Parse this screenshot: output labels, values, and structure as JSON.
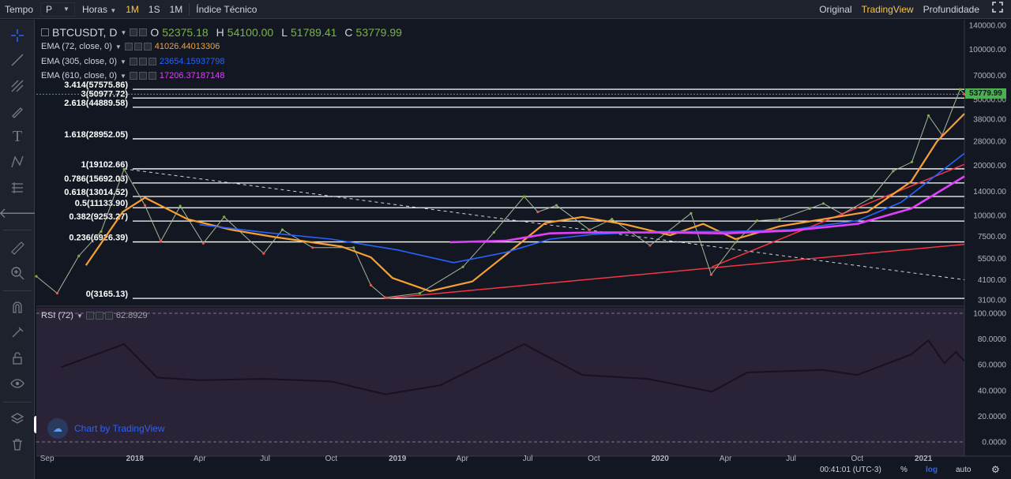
{
  "toolbar": {
    "tempo_label": "Tempo",
    "interval_value": "P",
    "horas_label": "Horas",
    "btn_1m_active": "1M",
    "btn_1s": "1S",
    "btn_1m": "1M",
    "indicators": "Índice Técnico",
    "original": "Original",
    "tradingview": "TradingView",
    "profundidade": "Profundidade",
    "fullscreen_icon": "fullscreen-icon"
  },
  "symbol": {
    "name": "BTCUSDT, D",
    "open_label": "O",
    "open": "52375.18",
    "high_label": "H",
    "high": "54100.00",
    "low_label": "L",
    "low": "51789.41",
    "close_label": "C",
    "close": "53779.99"
  },
  "ema": [
    {
      "label": "EMA (72, close, 0)",
      "value": "41026.44013306",
      "color": "#f7a035"
    },
    {
      "label": "EMA (305, close, 0)",
      "value": "23654.15937798",
      "color": "#2962ff"
    },
    {
      "label": "EMA (610, close, 0)",
      "value": "17206.37187148",
      "color": "#e040fb"
    }
  ],
  "fib_levels": [
    {
      "label": "3.414(57575.86)",
      "price": 57575.86
    },
    {
      "label": "3(50977.72)",
      "price": 50977.72
    },
    {
      "label": "2.618(44889.58)",
      "price": 44889.58
    },
    {
      "label": "1.618(28952.05)",
      "price": 28952.05
    },
    {
      "label": "1(19102.66)",
      "price": 19102.66
    },
    {
      "label": "0.786(15692.03)",
      "price": 15692.03
    },
    {
      "label": "0.618(13014.52)",
      "price": 13014.52
    },
    {
      "label": "0.5(11133.90)",
      "price": 11133.9
    },
    {
      "label": "0.382(9253.27)",
      "price": 9253.27
    },
    {
      "label": "0.236(6926.39)",
      "price": 6926.39
    },
    {
      "label": "0(3165.13)",
      "price": 3165.13
    }
  ],
  "price_axis": [
    "140000.00",
    "100000.00",
    "70000.00",
    "50000.00",
    "38000.00",
    "28000.00",
    "20000.00",
    "14000.00",
    "10000.00",
    "7500.00",
    "5500.00",
    "4100.00",
    "3100.00"
  ],
  "price_axis_values": [
    140000,
    100000,
    70000,
    50000,
    38000,
    28000,
    20000,
    14000,
    10000,
    7500,
    5500,
    4100,
    3100
  ],
  "current_price_tag": "53779.99",
  "rsi": {
    "label": "RSI (72)",
    "value": "62.8929",
    "axis": [
      "100.0000",
      "80.0000",
      "60.0000",
      "40.0000",
      "20.0000",
      "0.0000"
    ],
    "axis_values": [
      100,
      80,
      60,
      40,
      20,
      0
    ]
  },
  "time_axis": [
    "Sep",
    "2018",
    "Apr",
    "Jul",
    "Oct",
    "2019",
    "Apr",
    "Jul",
    "Oct",
    "2020",
    "Apr",
    "Jul",
    "Oct",
    "2021"
  ],
  "watermark": "Chart by TradingView",
  "status": {
    "clock": "00:41:01 (UTC-3)",
    "percent": "%",
    "log": "log",
    "auto": "auto"
  },
  "colors": {
    "background": "#131722",
    "rsi_background": "#2a2236",
    "fib_line": "#ffffff",
    "ema72": "#f7a035",
    "ema305": "#2962ff",
    "ema610": "#e040fb",
    "trendline": "#f23645",
    "candle_up": "#7cb342",
    "candle_down": "#ef5350",
    "accent": "#f7c744"
  },
  "chart_data": {
    "type": "line",
    "title": "BTCUSDT, D",
    "y_scale": "log",
    "x_start": "2017-08-17",
    "x_end": "2021-02-27",
    "ylim": [
      2900,
      160000
    ],
    "series": [
      {
        "name": "BTCUSDT",
        "x": [
          "2017-08-17",
          "2017-09-15",
          "2017-10-15",
          "2017-11-15",
          "2017-12-17",
          "2018-01-15",
          "2018-02-06",
          "2018-03-05",
          "2018-04-06",
          "2018-05-05",
          "2018-06-29",
          "2018-07-25",
          "2018-09-05",
          "2018-11-01",
          "2018-11-25",
          "2018-12-15",
          "2019-02-01",
          "2019-04-02",
          "2019-05-15",
          "2019-06-26",
          "2019-07-15",
          "2019-08-10",
          "2019-09-25",
          "2019-10-26",
          "2019-12-18",
          "2020-02-13",
          "2020-03-12",
          "2020-04-15",
          "2020-05-15",
          "2020-06-15",
          "2020-07-27",
          "2020-08-15",
          "2020-09-10",
          "2020-10-21",
          "2020-11-20",
          "2020-12-16",
          "2021-01-08",
          "2021-01-27",
          "2021-02-21",
          "2021-02-27"
        ],
        "values": [
          4300,
          3400,
          5700,
          8000,
          19000,
          11500,
          7000,
          11400,
          6800,
          9800,
          5900,
          8200,
          6400,
          6400,
          3800,
          3200,
          3400,
          4900,
          7900,
          13000,
          10500,
          11500,
          8200,
          9500,
          6600,
          10300,
          4400,
          6900,
          9300,
          9500,
          11000,
          11800,
          10200,
          12800,
          18500,
          21000,
          40000,
          30500,
          57500,
          53779.99
        ]
      },
      {
        "name": "EMA (72, close, 0)",
        "x": [
          "2017-10-25",
          "2017-12-15",
          "2018-01-15",
          "2018-03-15",
          "2018-05-15",
          "2018-07-15",
          "2018-10-15",
          "2018-11-25",
          "2018-12-25",
          "2019-02-15",
          "2019-04-15",
          "2019-06-15",
          "2019-07-25",
          "2019-09-15",
          "2019-11-15",
          "2020-01-15",
          "2020-03-01",
          "2020-04-15",
          "2020-06-15",
          "2020-08-15",
          "2020-10-15",
          "2020-12-15",
          "2021-01-20",
          "2021-02-27"
        ],
        "values": [
          5000,
          10500,
          12800,
          9500,
          8200,
          7400,
          6500,
          5600,
          4200,
          3500,
          4000,
          6500,
          9000,
          9800,
          8800,
          7600,
          8900,
          7200,
          8600,
          9500,
          10500,
          16000,
          28000,
          41026.44
        ]
      },
      {
        "name": "EMA (305, close, 0)",
        "x": [
          "2018-04-01",
          "2018-07-01",
          "2018-10-01",
          "2019-01-01",
          "2019-03-20",
          "2019-06-01",
          "2019-08-01",
          "2019-10-01",
          "2020-01-01",
          "2020-04-01",
          "2020-07-01",
          "2020-10-01",
          "2020-12-01",
          "2021-02-27"
        ],
        "values": [
          8800,
          7900,
          7200,
          6200,
          5200,
          6000,
          7200,
          7700,
          8000,
          8000,
          8200,
          9300,
          12000,
          23654.16
        ]
      },
      {
        "name": "EMA (610, close, 0)",
        "x": [
          "2019-03-15",
          "2019-06-01",
          "2019-08-01",
          "2019-10-01",
          "2020-01-01",
          "2020-04-01",
          "2020-07-01",
          "2020-10-01",
          "2020-12-15",
          "2021-02-27"
        ],
        "values": [
          6900,
          7050,
          7800,
          7900,
          7900,
          7800,
          8100,
          8900,
          11000,
          17206.37
        ]
      },
      {
        "name": "RSI (72)",
        "x": [
          "2017-09-20",
          "2017-12-17",
          "2018-02-01",
          "2018-04-01",
          "2018-07-01",
          "2018-10-01",
          "2018-12-15",
          "2019-03-01",
          "2019-06-26",
          "2019-09-15",
          "2019-12-15",
          "2020-03-13",
          "2020-05-01",
          "2020-08-15",
          "2020-10-01",
          "2020-12-15",
          "2021-01-08",
          "2021-01-30",
          "2021-02-15",
          "2021-02-27"
        ],
        "values": [
          58,
          76,
          50,
          48,
          49,
          47,
          37,
          44,
          76,
          52,
          49,
          39,
          54,
          56,
          52,
          68,
          79,
          61,
          70,
          62.89
        ]
      }
    ],
    "lines": [
      {
        "name": "red trendline",
        "from": {
          "x": "2018-12-15",
          "y": 3165
        },
        "to": {
          "x": "2021-02-27",
          "y": 6700
        }
      },
      {
        "name": "red trendline 2",
        "from": {
          "x": "2020-03-13",
          "y": 4900
        },
        "to": {
          "x": "2021-02-27",
          "y": 20300
        }
      },
      {
        "name": "white dashed trendline",
        "from": {
          "x": "2017-12-17",
          "y": 19102
        },
        "to": {
          "x": "2021-02-27",
          "y": 4100
        }
      }
    ]
  }
}
